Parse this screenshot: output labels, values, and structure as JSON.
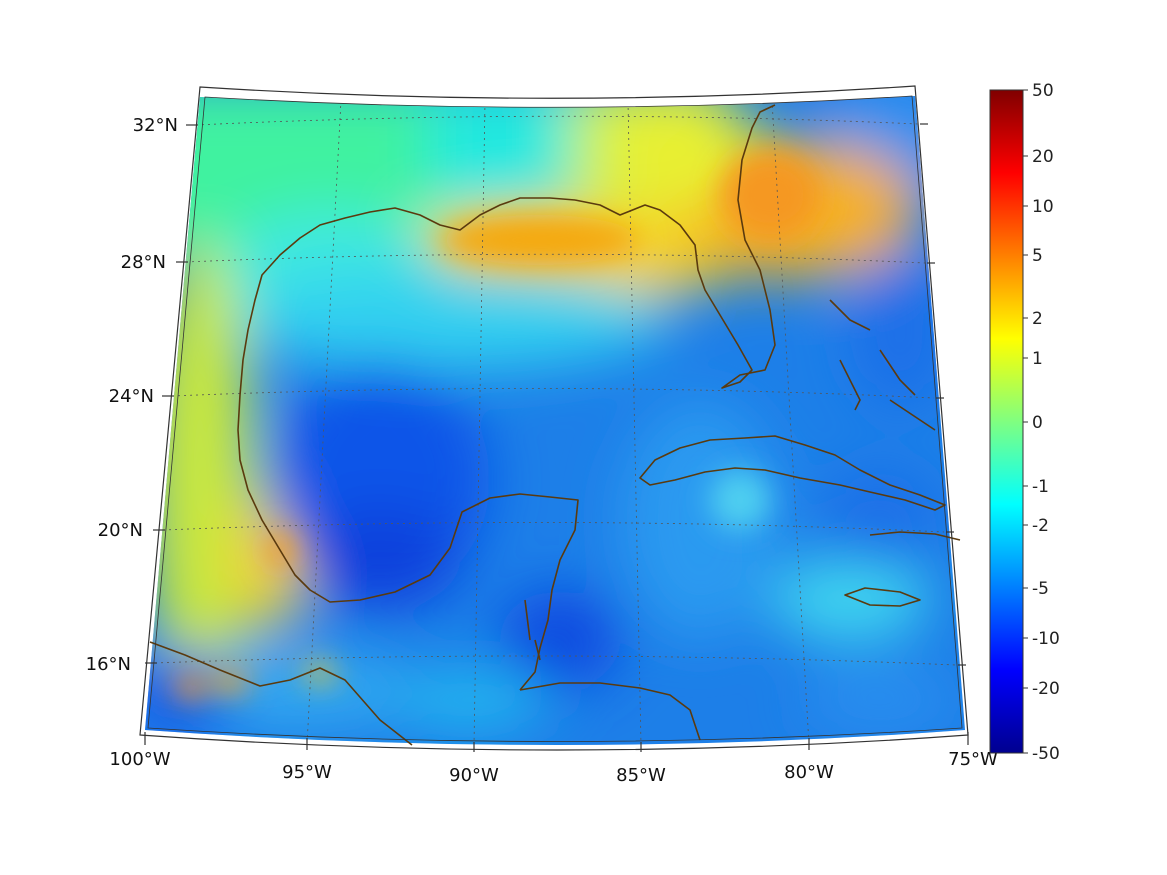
{
  "map": {
    "projection": "conic",
    "lon_range": [
      -100,
      -75
    ],
    "lat_range": [
      14,
      33
    ],
    "grid": true,
    "coastline_color": "#5a3a0e",
    "longitude_ticks": [
      "100°W",
      "95°W",
      "90°W",
      "85°W",
      "80°W",
      "75°W"
    ],
    "latitude_ticks": [
      "32°N",
      "28°N",
      "24°N",
      "20°N",
      "16°N"
    ],
    "colormap": "jet",
    "colorbar": {
      "placement": "right",
      "labels": [
        "50",
        "20",
        "10",
        "5",
        "2",
        "1",
        "0",
        "-1",
        "-2",
        "-5",
        "-10",
        "-20",
        "-50"
      ]
    }
  },
  "colors": {
    "jet": [
      "#00008f",
      "#0000ff",
      "#0080ff",
      "#00ffff",
      "#80ff80",
      "#ffff00",
      "#ff8000",
      "#ff0000",
      "#800000"
    ],
    "coastline": "#5a3a0e",
    "grid": "#555555"
  }
}
